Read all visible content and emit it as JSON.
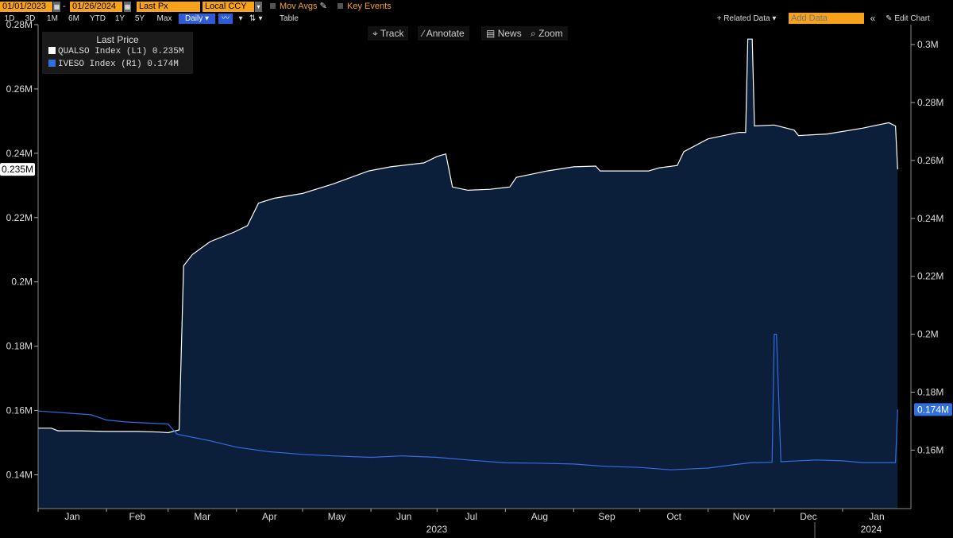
{
  "toolbar": {
    "start_date": "01/01/2023",
    "end_date": "01/26/2024",
    "date_sep": "-",
    "field": "Last Px",
    "currency": "Local CCY",
    "mov_avgs": "Mov Avgs",
    "key_events": "Key Events",
    "periods": [
      "1D",
      "3D",
      "1M",
      "6M",
      "YTD",
      "1Y",
      "5Y",
      "Max"
    ],
    "frequency": "Daily",
    "table": "Table",
    "related_data": "+ Related Data",
    "add_data_placeholder": "Add Data",
    "edit_chart": "Edit Chart"
  },
  "chart_tools": {
    "track": "Track",
    "annotate": "Annotate",
    "news": "News",
    "zoom": "Zoom"
  },
  "legend": {
    "title": "Last Price",
    "items": [
      {
        "label": "QUALSO Index  (L1) 0.235M",
        "color": "#ffffff"
      },
      {
        "label": "IVESO Index  (R1)  0.174M",
        "color": "#2f6fe0"
      }
    ]
  },
  "chart_data": {
    "type": "area",
    "x_months": [
      "Jan",
      "Feb",
      "Mar",
      "Apr",
      "May",
      "Jun",
      "Jul",
      "Aug",
      "Sep",
      "Oct",
      "Nov",
      "Dec",
      "Jan"
    ],
    "x_year_labels": [
      "2023",
      "2024"
    ],
    "left_axis": {
      "ticks": [
        0.28,
        0.26,
        0.24,
        0.22,
        0.2,
        0.18,
        0.16,
        0.14
      ],
      "tick_labels": [
        "0.28M",
        "0.26M",
        "0.24M",
        "0.22M",
        "0.2M",
        "0.18M",
        "0.16M",
        "0.14M"
      ],
      "ylim": [
        0.1295,
        0.28
      ]
    },
    "right_axis": {
      "ticks": [
        0.3,
        0.28,
        0.26,
        0.24,
        0.22,
        0.2,
        0.18,
        0.16
      ],
      "tick_labels": [
        "0.3M",
        "0.28M",
        "0.26M",
        "0.24M",
        "0.22M",
        "0.2M",
        "0.18M",
        "0.16M"
      ],
      "ylim": [
        0.1398,
        0.3069
      ]
    },
    "series": [
      {
        "name": "QUALSO Index",
        "axis": "left",
        "color": "#ffffff",
        "fill": "#0b1f3a",
        "last_label": "0.235M",
        "points": [
          [
            "2023-01-01",
            0.1545
          ],
          [
            "2023-01-07",
            0.1545
          ],
          [
            "2023-01-10",
            0.1537
          ],
          [
            "2023-01-20",
            0.1537
          ],
          [
            "2023-02-01",
            0.1535
          ],
          [
            "2023-02-15",
            0.1535
          ],
          [
            "2023-02-25",
            0.1533
          ],
          [
            "2023-03-01",
            0.1531
          ],
          [
            "2023-03-06",
            0.154
          ],
          [
            "2023-03-08",
            0.205
          ],
          [
            "2023-03-12",
            0.2085
          ],
          [
            "2023-03-20",
            0.2125
          ],
          [
            "2023-03-31",
            0.2155
          ],
          [
            "2023-04-06",
            0.2175
          ],
          [
            "2023-04-11",
            0.2245
          ],
          [
            "2023-04-18",
            0.226
          ],
          [
            "2023-05-01",
            0.2275
          ],
          [
            "2023-05-15",
            0.2305
          ],
          [
            "2023-05-31",
            0.2345
          ],
          [
            "2023-06-10",
            0.2358
          ],
          [
            "2023-06-25",
            0.237
          ],
          [
            "2023-07-01",
            0.239
          ],
          [
            "2023-07-05",
            0.2398
          ],
          [
            "2023-07-08",
            0.2295
          ],
          [
            "2023-07-15",
            0.2285
          ],
          [
            "2023-07-25",
            0.2288
          ],
          [
            "2023-08-03",
            0.2295
          ],
          [
            "2023-08-06",
            0.2325
          ],
          [
            "2023-08-20",
            0.2345
          ],
          [
            "2023-09-01",
            0.2358
          ],
          [
            "2023-09-11",
            0.236
          ],
          [
            "2023-09-13",
            0.2345
          ],
          [
            "2023-09-25",
            0.2345
          ],
          [
            "2023-10-05",
            0.2345
          ],
          [
            "2023-10-10",
            0.2355
          ],
          [
            "2023-10-18",
            0.2362
          ],
          [
            "2023-10-21",
            0.2405
          ],
          [
            "2023-11-01",
            0.2445
          ],
          [
            "2023-11-15",
            0.2465
          ],
          [
            "2023-11-18",
            0.2465
          ],
          [
            "2023-11-19",
            0.2755
          ],
          [
            "2023-11-21",
            0.2755
          ],
          [
            "2023-11-22",
            0.2485
          ],
          [
            "2023-12-01",
            0.2488
          ],
          [
            "2023-12-10",
            0.2472
          ],
          [
            "2023-12-12",
            0.2455
          ],
          [
            "2023-12-25",
            0.246
          ],
          [
            "2024-01-10",
            0.2478
          ],
          [
            "2024-01-22",
            0.2495
          ],
          [
            "2024-01-25",
            0.2485
          ],
          [
            "2024-01-26",
            0.235
          ]
        ]
      },
      {
        "name": "IVESO Index",
        "axis": "right",
        "color": "#2f6fe0",
        "last_label": "0.174M",
        "points": [
          [
            "2023-01-01",
            0.1735
          ],
          [
            "2023-01-25",
            0.1722
          ],
          [
            "2023-02-01",
            0.1704
          ],
          [
            "2023-02-10",
            0.1697
          ],
          [
            "2023-03-01",
            0.169
          ],
          [
            "2023-03-05",
            0.1655
          ],
          [
            "2023-03-20",
            0.1632
          ],
          [
            "2023-04-01",
            0.161
          ],
          [
            "2023-04-15",
            0.1595
          ],
          [
            "2023-05-01",
            0.1585
          ],
          [
            "2023-05-15",
            0.158
          ],
          [
            "2023-06-01",
            0.1575
          ],
          [
            "2023-06-15",
            0.158
          ],
          [
            "2023-07-01",
            0.1575
          ],
          [
            "2023-07-15",
            0.1566
          ],
          [
            "2023-08-01",
            0.1556
          ],
          [
            "2023-08-15",
            0.1555
          ],
          [
            "2023-09-01",
            0.1552
          ],
          [
            "2023-09-15",
            0.1544
          ],
          [
            "2023-10-01",
            0.154
          ],
          [
            "2023-10-15",
            0.1532
          ],
          [
            "2023-11-01",
            0.1538
          ],
          [
            "2023-11-12",
            0.1549
          ],
          [
            "2023-11-20",
            0.1556
          ],
          [
            "2023-11-30",
            0.1558
          ],
          [
            "2023-12-01",
            0.2
          ],
          [
            "2023-12-02",
            0.2
          ],
          [
            "2023-12-04",
            0.156
          ],
          [
            "2023-12-20",
            0.1566
          ],
          [
            "2024-01-01",
            0.1563
          ],
          [
            "2024-01-10",
            0.1557
          ],
          [
            "2024-01-25",
            0.1557
          ],
          [
            "2024-01-26",
            0.174
          ]
        ]
      }
    ]
  }
}
